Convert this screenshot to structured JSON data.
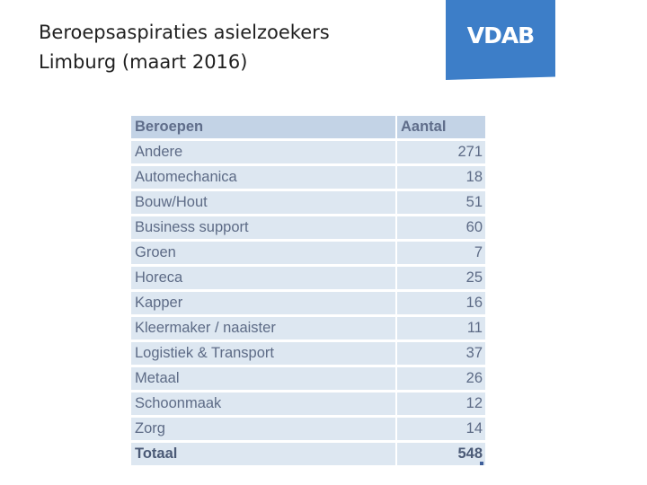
{
  "title": {
    "line1": "Beroepsaspiraties asielzoekers",
    "line2": "Limburg (maart 2016)"
  },
  "logo": {
    "text": "VDAB",
    "color": "#3d7ec8"
  },
  "table": {
    "headers": {
      "name": "Beroepen",
      "count": "Aantal"
    },
    "rows": [
      {
        "name": "Andere",
        "count": "271"
      },
      {
        "name": "Automechanica",
        "count": "18"
      },
      {
        "name": "Bouw/Hout",
        "count": "51"
      },
      {
        "name": "Business support",
        "count": "60"
      },
      {
        "name": "Groen",
        "count": "7"
      },
      {
        "name": "Horeca",
        "count": "25"
      },
      {
        "name": "Kapper",
        "count": "16"
      },
      {
        "name": "Kleermaker / naaister",
        "count": "11"
      },
      {
        "name": "Logistiek & Transport",
        "count": "37"
      },
      {
        "name": "Metaal",
        "count": "26"
      },
      {
        "name": "Schoonmaak",
        "count": "12"
      },
      {
        "name": "Zorg",
        "count": "14"
      }
    ],
    "total": {
      "name": "Totaal",
      "count": "548"
    }
  }
}
